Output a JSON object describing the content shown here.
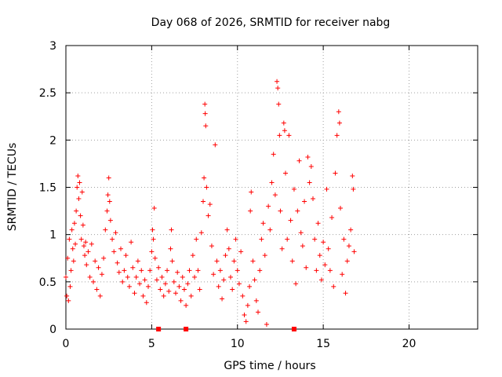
{
  "chart_data": {
    "type": "scatter",
    "title": "Day 068 of 2026, SRMTID for receiver nabg",
    "xlabel": "GPS time / hours",
    "ylabel": "SRMTID / TECUs",
    "xlim": [
      0,
      24
    ],
    "ylim": [
      0,
      3
    ],
    "x_ticks": [
      0,
      5,
      10,
      15,
      20
    ],
    "y_ticks": [
      0,
      0.5,
      1,
      1.5,
      2,
      2.5,
      3
    ],
    "x_tick_labels": [
      "0",
      "5",
      "10",
      "15",
      "20"
    ],
    "y_tick_labels": [
      "0",
      "0.5",
      "1",
      "1.5",
      "2",
      "2.5",
      "3"
    ],
    "grid": true,
    "marker": "plus",
    "color": "#ff0000",
    "series": [
      {
        "name": "SRMTID",
        "points": [
          [
            0.0,
            0.55
          ],
          [
            0.05,
            0.35
          ],
          [
            0.1,
            0.75
          ],
          [
            0.15,
            0.3
          ],
          [
            0.2,
            0.95
          ],
          [
            0.25,
            0.45
          ],
          [
            0.3,
            0.62
          ],
          [
            0.35,
            1.05
          ],
          [
            0.4,
            0.85
          ],
          [
            0.45,
            0.72
          ],
          [
            0.5,
            1.12
          ],
          [
            0.55,
            0.9
          ],
          [
            0.6,
            1.25
          ],
          [
            0.65,
            1.5
          ],
          [
            0.7,
            1.62
          ],
          [
            0.75,
            1.38
          ],
          [
            0.8,
            1.55
          ],
          [
            0.85,
            1.2
          ],
          [
            0.9,
            0.95
          ],
          [
            0.95,
            1.45
          ],
          [
            1.0,
            1.1
          ],
          [
            1.05,
            0.88
          ],
          [
            1.1,
            0.78
          ],
          [
            1.15,
            0.92
          ],
          [
            1.2,
            0.68
          ],
          [
            1.3,
            0.82
          ],
          [
            1.4,
            0.55
          ],
          [
            1.5,
            0.9
          ],
          [
            1.6,
            0.5
          ],
          [
            1.7,
            0.72
          ],
          [
            1.8,
            0.42
          ],
          [
            1.9,
            0.65
          ],
          [
            2.0,
            0.35
          ],
          [
            2.1,
            0.58
          ],
          [
            2.2,
            0.75
          ],
          [
            2.3,
            1.05
          ],
          [
            2.4,
            1.25
          ],
          [
            2.45,
            1.42
          ],
          [
            2.5,
            1.6
          ],
          [
            2.55,
            1.35
          ],
          [
            2.6,
            1.15
          ],
          [
            2.7,
            0.95
          ],
          [
            2.8,
            0.82
          ],
          [
            2.9,
            1.02
          ],
          [
            3.0,
            0.7
          ],
          [
            3.1,
            0.6
          ],
          [
            3.2,
            0.85
          ],
          [
            3.3,
            0.5
          ],
          [
            3.4,
            0.62
          ],
          [
            3.5,
            0.78
          ],
          [
            3.6,
            0.55
          ],
          [
            3.7,
            0.45
          ],
          [
            3.8,
            0.92
          ],
          [
            3.9,
            0.65
          ],
          [
            4.0,
            0.38
          ],
          [
            4.1,
            0.55
          ],
          [
            4.2,
            0.72
          ],
          [
            4.3,
            0.48
          ],
          [
            4.4,
            0.62
          ],
          [
            4.5,
            0.35
          ],
          [
            4.6,
            0.52
          ],
          [
            4.7,
            0.28
          ],
          [
            4.8,
            0.45
          ],
          [
            4.9,
            0.62
          ],
          [
            5.0,
            0.82
          ],
          [
            5.05,
            1.05
          ],
          [
            5.1,
            0.95
          ],
          [
            5.15,
            1.28
          ],
          [
            5.2,
            0.75
          ],
          [
            5.3,
            0.52
          ],
          [
            5.4,
            0.65
          ],
          [
            5.5,
            0.42
          ],
          [
            5.6,
            0.55
          ],
          [
            5.7,
            0.35
          ],
          [
            5.8,
            0.48
          ],
          [
            5.9,
            0.62
          ],
          [
            6.0,
            0.4
          ],
          [
            6.1,
            0.85
          ],
          [
            6.15,
            1.05
          ],
          [
            6.2,
            0.72
          ],
          [
            6.3,
            0.5
          ],
          [
            6.4,
            0.38
          ],
          [
            6.5,
            0.6
          ],
          [
            6.6,
            0.45
          ],
          [
            6.7,
            0.3
          ],
          [
            6.8,
            0.55
          ],
          [
            6.9,
            0.42
          ],
          [
            7.0,
            0.25
          ],
          [
            7.1,
            0.48
          ],
          [
            7.2,
            0.62
          ],
          [
            7.3,
            0.35
          ],
          [
            7.4,
            0.78
          ],
          [
            7.5,
            0.55
          ],
          [
            7.6,
            0.95
          ],
          [
            7.7,
            0.62
          ],
          [
            7.8,
            0.42
          ],
          [
            7.9,
            1.02
          ],
          [
            8.0,
            1.35
          ],
          [
            8.05,
            1.6
          ],
          [
            8.1,
            2.38
          ],
          [
            8.12,
            2.28
          ],
          [
            8.15,
            2.15
          ],
          [
            8.2,
            1.5
          ],
          [
            8.3,
            1.2
          ],
          [
            8.4,
            1.32
          ],
          [
            8.5,
            0.88
          ],
          [
            8.6,
            0.58
          ],
          [
            8.7,
            1.95
          ],
          [
            8.8,
            0.72
          ],
          [
            8.9,
            0.45
          ],
          [
            9.0,
            0.62
          ],
          [
            9.1,
            0.32
          ],
          [
            9.2,
            0.52
          ],
          [
            9.3,
            0.78
          ],
          [
            9.4,
            1.05
          ],
          [
            9.5,
            0.85
          ],
          [
            9.6,
            0.55
          ],
          [
            9.7,
            0.42
          ],
          [
            9.8,
            0.72
          ],
          [
            9.9,
            0.95
          ],
          [
            10.0,
            0.62
          ],
          [
            10.1,
            0.48
          ],
          [
            10.2,
            0.82
          ],
          [
            10.3,
            0.35
          ],
          [
            10.4,
            0.15
          ],
          [
            10.5,
            0.08
          ],
          [
            10.6,
            0.25
          ],
          [
            10.7,
            0.45
          ],
          [
            10.75,
            1.25
          ],
          [
            10.8,
            1.45
          ],
          [
            10.9,
            0.72
          ],
          [
            11.0,
            0.52
          ],
          [
            11.1,
            0.3
          ],
          [
            11.2,
            0.18
          ],
          [
            11.3,
            0.62
          ],
          [
            11.4,
            0.95
          ],
          [
            11.5,
            1.12
          ],
          [
            11.6,
            0.78
          ],
          [
            11.7,
            0.05
          ],
          [
            11.8,
            1.3
          ],
          [
            11.9,
            1.05
          ],
          [
            12.0,
            1.55
          ],
          [
            12.1,
            1.85
          ],
          [
            12.2,
            1.42
          ],
          [
            12.3,
            2.62
          ],
          [
            12.35,
            2.55
          ],
          [
            12.4,
            2.38
          ],
          [
            12.45,
            2.05
          ],
          [
            12.5,
            1.25
          ],
          [
            12.6,
            0.85
          ],
          [
            12.7,
            2.18
          ],
          [
            12.75,
            2.1
          ],
          [
            12.8,
            1.65
          ],
          [
            12.9,
            0.95
          ],
          [
            13.0,
            2.05
          ],
          [
            13.1,
            1.15
          ],
          [
            13.2,
            0.72
          ],
          [
            13.3,
            1.48
          ],
          [
            13.4,
            0.48
          ],
          [
            13.5,
            1.25
          ],
          [
            13.6,
            1.78
          ],
          [
            13.7,
            1.02
          ],
          [
            13.8,
            0.88
          ],
          [
            13.9,
            1.35
          ],
          [
            14.0,
            0.65
          ],
          [
            14.1,
            1.82
          ],
          [
            14.2,
            1.55
          ],
          [
            14.3,
            1.72
          ],
          [
            14.4,
            1.38
          ],
          [
            14.5,
            0.95
          ],
          [
            14.6,
            0.62
          ],
          [
            14.7,
            1.12
          ],
          [
            14.8,
            0.78
          ],
          [
            14.9,
            0.52
          ],
          [
            15.0,
            0.92
          ],
          [
            15.1,
            0.68
          ],
          [
            15.2,
            1.48
          ],
          [
            15.3,
            0.85
          ],
          [
            15.4,
            0.62
          ],
          [
            15.5,
            1.18
          ],
          [
            15.6,
            0.45
          ],
          [
            15.7,
            1.65
          ],
          [
            15.8,
            2.05
          ],
          [
            15.9,
            2.3
          ],
          [
            15.95,
            2.18
          ],
          [
            16.0,
            1.28
          ],
          [
            16.1,
            0.58
          ],
          [
            16.2,
            0.95
          ],
          [
            16.3,
            0.38
          ],
          [
            16.4,
            0.72
          ],
          [
            16.5,
            0.88
          ],
          [
            16.6,
            1.05
          ],
          [
            16.7,
            1.62
          ],
          [
            16.75,
            1.48
          ],
          [
            16.8,
            0.82
          ]
        ]
      }
    ],
    "baseline_markers_x": [
      5.4,
      7.0,
      13.3
    ]
  }
}
